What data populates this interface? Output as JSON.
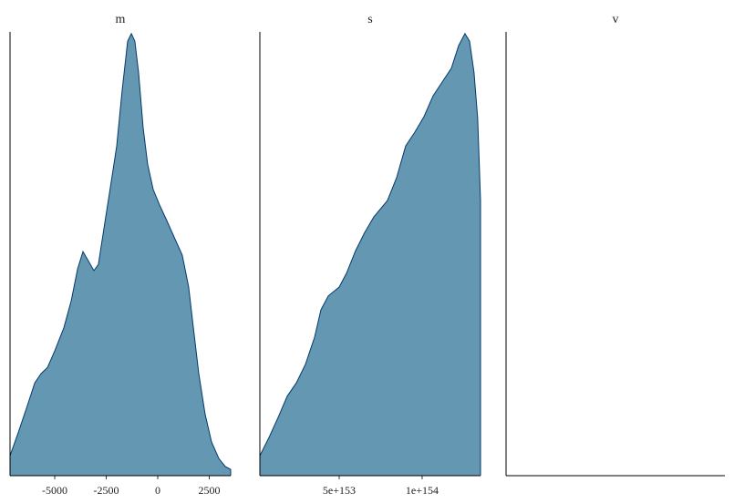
{
  "chart_data": [
    {
      "type": "area",
      "title": "m",
      "color": "#6497b1",
      "line_color": "#03396c",
      "x": [
        -7170,
        -6770,
        -6330,
        -5970,
        -5660,
        -5350,
        -5000,
        -4560,
        -4200,
        -3890,
        -3630,
        -3410,
        -3100,
        -2880,
        -2570,
        -2260,
        -1990,
        -1730,
        -1460,
        -1280,
        -1110,
        -930,
        -710,
        -490,
        -220,
        90,
        400,
        750,
        1190,
        1500,
        1730,
        1990,
        2300,
        2610,
        2960,
        3270,
        3540
      ],
      "values": [
        0.045,
        0.097,
        0.158,
        0.209,
        0.23,
        0.244,
        0.281,
        0.333,
        0.394,
        0.466,
        0.505,
        0.487,
        0.462,
        0.476,
        0.569,
        0.661,
        0.743,
        0.867,
        0.979,
        0.996,
        0.979,
        0.908,
        0.784,
        0.702,
        0.645,
        0.61,
        0.579,
        0.542,
        0.497,
        0.425,
        0.333,
        0.23,
        0.138,
        0.076,
        0.039,
        0.021,
        0.014
      ],
      "xlim": [
        -7170,
        3540
      ],
      "xticks": [
        -5000,
        -2500,
        0,
        2500
      ],
      "ylim": [
        0,
        1
      ]
    },
    {
      "type": "area",
      "title": "s",
      "color": "#6497b1",
      "line_color": "#03396c",
      "x": [
        2.2e+152,
        7.7e+152,
        1.32e+153,
        1.87e+153,
        2.42e+153,
        2.97e+153,
        3.52e+153,
        3.9e+153,
        4.34e+153,
        5e+153,
        5.44e+153,
        5.99e+153,
        6.54e+153,
        7.09e+153,
        7.91e+153,
        8.46e+153,
        9.01e+153,
        9.56e+153,
        1.011e+154,
        1.066e+154,
        1.121e+154,
        1.176e+154,
        1.22e+154,
        1.258e+154,
        1.286e+154,
        1.313e+154,
        1.335e+154,
        1.352e+154
      ],
      "values": [
        0.045,
        0.086,
        0.131,
        0.179,
        0.209,
        0.251,
        0.312,
        0.374,
        0.405,
        0.425,
        0.456,
        0.507,
        0.548,
        0.583,
        0.62,
        0.671,
        0.743,
        0.774,
        0.809,
        0.856,
        0.887,
        0.918,
        0.969,
        0.996,
        0.979,
        0.908,
        0.805,
        0.62
      ],
      "xlim": [
        2.2e+152,
        1.352e+154
      ],
      "xticks": [
        {
          "value": 5e+153,
          "label": "5e+153"
        },
        {
          "value": 1e+154,
          "label": "1e+154"
        }
      ],
      "ylim": [
        0,
        1
      ]
    },
    {
      "type": "area",
      "title": "v"
    }
  ]
}
